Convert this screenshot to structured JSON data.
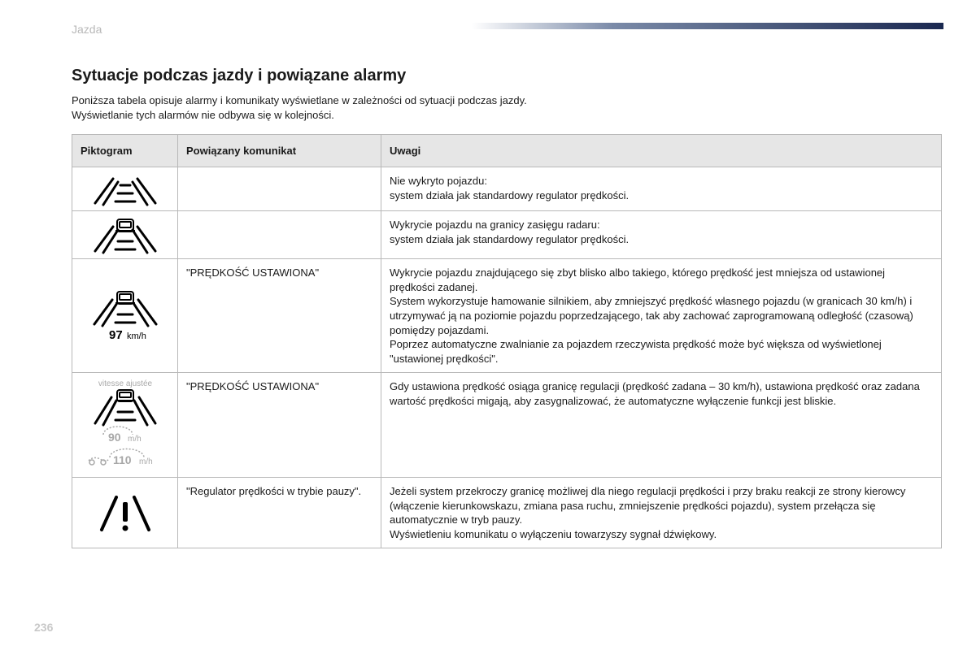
{
  "section_label": "Jazda",
  "page_number": "236",
  "title": "Sytuacje podczas jazdy i powiązane alarmy",
  "intro_line1": "Poniższa tabela opisuje alarmy i komunikaty wyświetlane w zależności od sytuacji podczas jazdy.",
  "intro_line2": "Wyświetlanie tych alarmów nie odbywa się w kolejności.",
  "headers": {
    "picto": "Piktogram",
    "message": "Powiązany komunikat",
    "notes": "Uwagi"
  },
  "rows": [
    {
      "message": "",
      "notes": "Nie wykryto pojazdu:\nsystem działa jak standardowy regulator prędkości."
    },
    {
      "message": "",
      "notes": "Wykrycie pojazdu na granicy zasięgu radaru:\nsystem działa jak standardowy regulator prędkości."
    },
    {
      "message": "\"PRĘDKOŚĆ USTAWIONA\"",
      "notes": "Wykrycie pojazdu znajdującego się zbyt blisko albo takiego, którego prędkość jest mniejsza od ustawionej prędkości zadanej.\nSystem wykorzystuje hamowanie silnikiem, aby zmniejszyć prędkość własnego pojazdu (w granicach 30 km/h) i utrzymywać ją na poziomie pojazdu poprzedzającego, tak aby zachować zaprogramowaną odległość (czasową) pomiędzy pojazdami.\nPoprzez automatyczne zwalnianie za pojazdem rzeczywista prędkość może być większa od wyświetlonej \"ustawionej prędkości\"."
    },
    {
      "message": "\"PRĘDKOŚĆ USTAWIONA\"",
      "notes": "Gdy ustawiona prędkość osiąga granicę regulacji (prędkość zadana – 30 km/h), ustawiona prędkość oraz zadana wartość prędkości migają, aby zasygnalizować, że automatyczne wyłączenie funkcji jest bliskie."
    },
    {
      "message": "\"Regulator prędkości w trybie pauzy\".",
      "notes": "Jeżeli system przekroczy granicę możliwej dla niego regulacji prędkości i przy braku reakcji ze strony kierowcy (włączenie kierunkowskazu, zmiana pasa ruchu, zmniejszenie prędkości pojazdu), system przełącza się automatycznie w tryb pauzy.\nWyświetleniu komunikatu o wyłączeniu towarzyszy sygnał dźwiękowy."
    }
  ],
  "icon_labels": {
    "r3_speed": "97",
    "r3_unit": "km/h",
    "r4_top": "vitesse ajustée",
    "r4_speed1": "90",
    "r4_unit1": "m/h",
    "r4_speed2": "110",
    "r4_unit2": "m/h"
  },
  "colors": {
    "text": "#1a1a1a",
    "muted": "#b8b8b8",
    "header_bg": "#e6e6e6",
    "border": "#b8b8b8",
    "gradient_mid": "#7a8aa8",
    "gradient_end": "#1a2850",
    "icon_gray": "#a8a8a8"
  }
}
